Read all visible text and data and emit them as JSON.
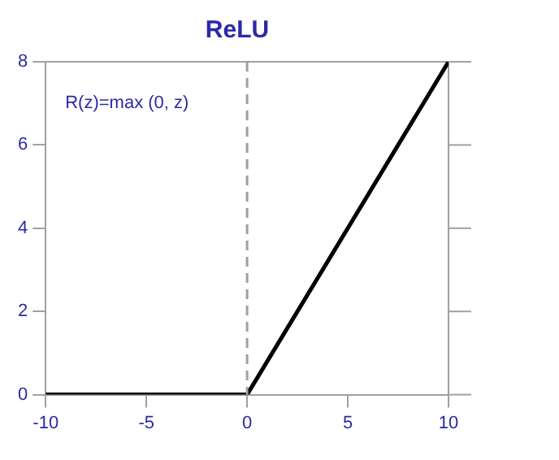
{
  "chart_data": {
    "type": "line",
    "title": "ReLU",
    "x": [
      -10,
      0,
      10
    ],
    "series": [
      {
        "color": "#000000",
        "values": [
          0,
          0,
          8
        ]
      }
    ],
    "xlim": [
      -10,
      10
    ],
    "xticks": [
      -10,
      -5,
      0,
      5,
      10
    ],
    "ylim": [
      0,
      8
    ],
    "yticks": [
      0,
      2,
      4,
      6,
      8
    ],
    "ref_lines": [
      {
        "axis": "x",
        "value": 0,
        "color": "#a0a0a0",
        "line_style": "dashed"
      }
    ],
    "annotations": [
      "R(z)=max (0, z)"
    ],
    "marker": "none",
    "line_style": "solid",
    "grid": false,
    "legend": false
  }
}
